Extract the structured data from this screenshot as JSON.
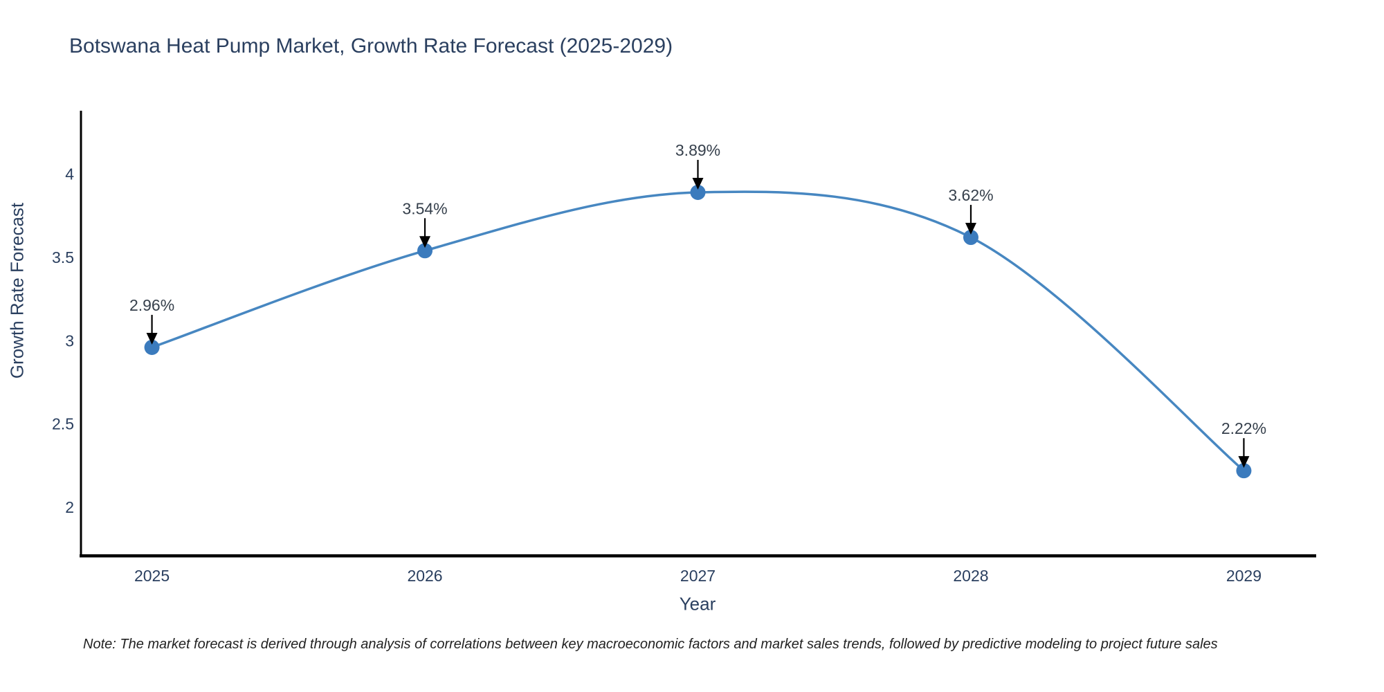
{
  "note": "Note: The market forecast is derived through analysis of correlations between key macroeconomic factors and market sales trends, followed by predictive modeling to project future sales",
  "chart_data": {
    "type": "line",
    "title": "Botswana Heat Pump Market, Growth Rate Forecast (2025-2029)",
    "xlabel": "Year",
    "ylabel": "Growth Rate Forecast",
    "x": [
      2025,
      2026,
      2027,
      2028,
      2029
    ],
    "values": [
      2.96,
      3.54,
      3.89,
      3.62,
      2.22
    ],
    "point_labels": [
      "2.96%",
      "3.54%",
      "3.89%",
      "3.62%",
      "2.22%"
    ],
    "yticks": [
      2,
      2.5,
      3,
      3.5,
      4
    ],
    "ylim": [
      1.71,
      4.38
    ],
    "xlim": [
      2024.74,
      2029.26
    ],
    "line_shape": "spline",
    "grid": false,
    "legend": "none",
    "colors": {
      "line": "#4787c1",
      "marker": "#3b7bbd",
      "axis_spine": "#000000",
      "annotation_arrow": "#000000",
      "tick_text": "#2a3f5f",
      "annotation_text": "#36404c"
    }
  }
}
